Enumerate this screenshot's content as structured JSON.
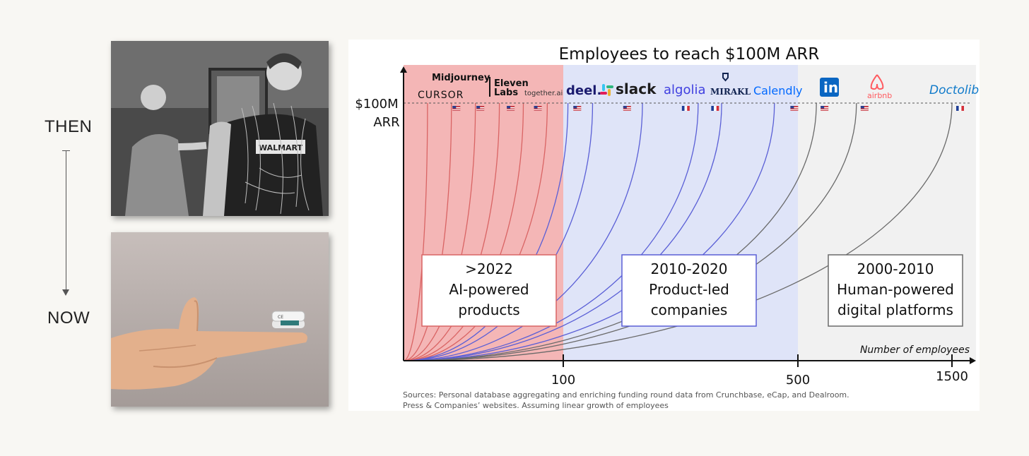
{
  "timeline": {
    "then_label": "THEN",
    "now_label": "NOW"
  },
  "photos": {
    "then_shirt_text": "WALMART",
    "now_device_text": "CE"
  },
  "chart_data": {
    "type": "line",
    "title": "Employees to reach $100M ARR",
    "y_axis_label_line1": "$100M",
    "y_axis_label_line2": "ARR",
    "xlabel": "Number of employees",
    "x_ticks": [
      {
        "value": 0,
        "label": ""
      },
      {
        "value": 100,
        "label": "100"
      },
      {
        "value": 500,
        "label": "500"
      },
      {
        "value": 1500,
        "label": "1500"
      }
    ],
    "x_scale": "piecewise",
    "ylim": [
      0,
      100
    ],
    "target_line": "dashed",
    "eras": [
      {
        "name": "ai",
        "range": [
          0,
          100
        ],
        "color": "#f4b6b6",
        "box_lines": [
          ">2022",
          "AI-powered",
          "products"
        ],
        "curve_color": "#d96464"
      },
      {
        "name": "product",
        "range": [
          100,
          500
        ],
        "color": "#dfe4f8",
        "box_lines": [
          "2010-2020",
          "Product-led",
          "companies"
        ],
        "curve_color": "#5a5fd6"
      },
      {
        "name": "human",
        "range": [
          500,
          1500
        ],
        "color": "#f1f1f1",
        "box_lines": [
          "2000-2010",
          "Human-powered",
          "digital platforms"
        ],
        "curve_color": "#6a6a6a"
      }
    ],
    "series": [
      {
        "values": [
          {
            "x": 15,
            "y": 100
          },
          {
            "x": 0,
            "y": 0
          }
        ],
        "era": "ai"
      },
      {
        "values": [
          {
            "x": 30,
            "y": 100
          },
          {
            "x": 0,
            "y": 0
          }
        ],
        "era": "ai"
      },
      {
        "values": [
          {
            "x": 45,
            "y": 100
          },
          {
            "x": 0,
            "y": 0
          }
        ],
        "era": "ai"
      },
      {
        "values": [
          {
            "x": 60,
            "y": 100
          },
          {
            "x": 0,
            "y": 0
          }
        ],
        "era": "ai"
      },
      {
        "values": [
          {
            "x": 75,
            "y": 100
          },
          {
            "x": 0,
            "y": 0
          }
        ],
        "era": "ai"
      },
      {
        "values": [
          {
            "x": 90,
            "y": 100
          },
          {
            "x": 0,
            "y": 0
          }
        ],
        "era": "ai"
      },
      {
        "values": [
          {
            "x": 108,
            "y": 100
          },
          {
            "x": 0,
            "y": 0
          }
        ],
        "era": "product"
      },
      {
        "values": [
          {
            "x": 150,
            "y": 100
          },
          {
            "x": 0,
            "y": 0
          }
        ],
        "era": "product"
      },
      {
        "values": [
          {
            "x": 235,
            "y": 100
          },
          {
            "x": 0,
            "y": 0
          }
        ],
        "era": "product"
      },
      {
        "values": [
          {
            "x": 330,
            "y": 100
          },
          {
            "x": 0,
            "y": 0
          }
        ],
        "era": "product"
      },
      {
        "values": [
          {
            "x": 370,
            "y": 100
          },
          {
            "x": 0,
            "y": 0
          }
        ],
        "era": "product"
      },
      {
        "values": [
          {
            "x": 460,
            "y": 100
          },
          {
            "x": 0,
            "y": 0
          }
        ],
        "era": "product"
      },
      {
        "values": [
          {
            "x": 620,
            "y": 100
          },
          {
            "x": 0,
            "y": 0
          }
        ],
        "era": "human"
      },
      {
        "values": [
          {
            "x": 880,
            "y": 100
          },
          {
            "x": 0,
            "y": 0
          }
        ],
        "era": "human"
      },
      {
        "values": [
          {
            "x": 1500,
            "y": 100
          },
          {
            "x": 0,
            "y": 0
          }
        ],
        "era": "human"
      }
    ],
    "flags": [
      {
        "x": 28,
        "country": "us"
      },
      {
        "x": 43,
        "country": "us"
      },
      {
        "x": 62,
        "country": "us"
      },
      {
        "x": 79,
        "country": "us"
      },
      {
        "x": 110,
        "country": "us"
      },
      {
        "x": 195,
        "country": "us"
      },
      {
        "x": 295,
        "country": "fr"
      },
      {
        "x": 345,
        "country": "fr"
      },
      {
        "x": 480,
        "country": "us"
      },
      {
        "x": 620,
        "country": "us"
      },
      {
        "x": 880,
        "country": "us"
      },
      {
        "x": 1500,
        "country": "fr"
      }
    ],
    "companies": [
      {
        "name": "Midjourney",
        "style": "bold",
        "color": "#111111"
      },
      {
        "name": "CURSOR",
        "style": "caps",
        "color": "#111111"
      },
      {
        "name": "Eleven",
        "style": "bold",
        "color": "#111111"
      },
      {
        "name": "Labs",
        "style": "bold",
        "color": "#111111"
      },
      {
        "name": "together.ai",
        "style": "small",
        "color": "#333333"
      },
      {
        "name": "deel.",
        "style": "bold",
        "color": "#1a1a6e"
      },
      {
        "name": "slack",
        "style": "bold",
        "color": "#1d1c1d"
      },
      {
        "name": "algolia",
        "style": "bold",
        "color": "#3f3fe0"
      },
      {
        "name": "MIRAKL",
        "style": "serif",
        "color": "#132552"
      },
      {
        "name": "Calendly",
        "style": "normal",
        "color": "#0069ff"
      },
      {
        "name": "in",
        "style": "linkedin",
        "color": "#0a66c2"
      },
      {
        "name": "airbnb",
        "style": "small",
        "color": "#ff5a5f"
      },
      {
        "name": "Doctolib",
        "style": "italic",
        "color": "#107aca"
      }
    ],
    "sources_line1": "Sources: Personal database aggregating and enriching funding round data from Crunchbase, eCap, and Dealroom.",
    "sources_line2": "Press & Companies’ websites. Assuming linear growth of employees"
  }
}
